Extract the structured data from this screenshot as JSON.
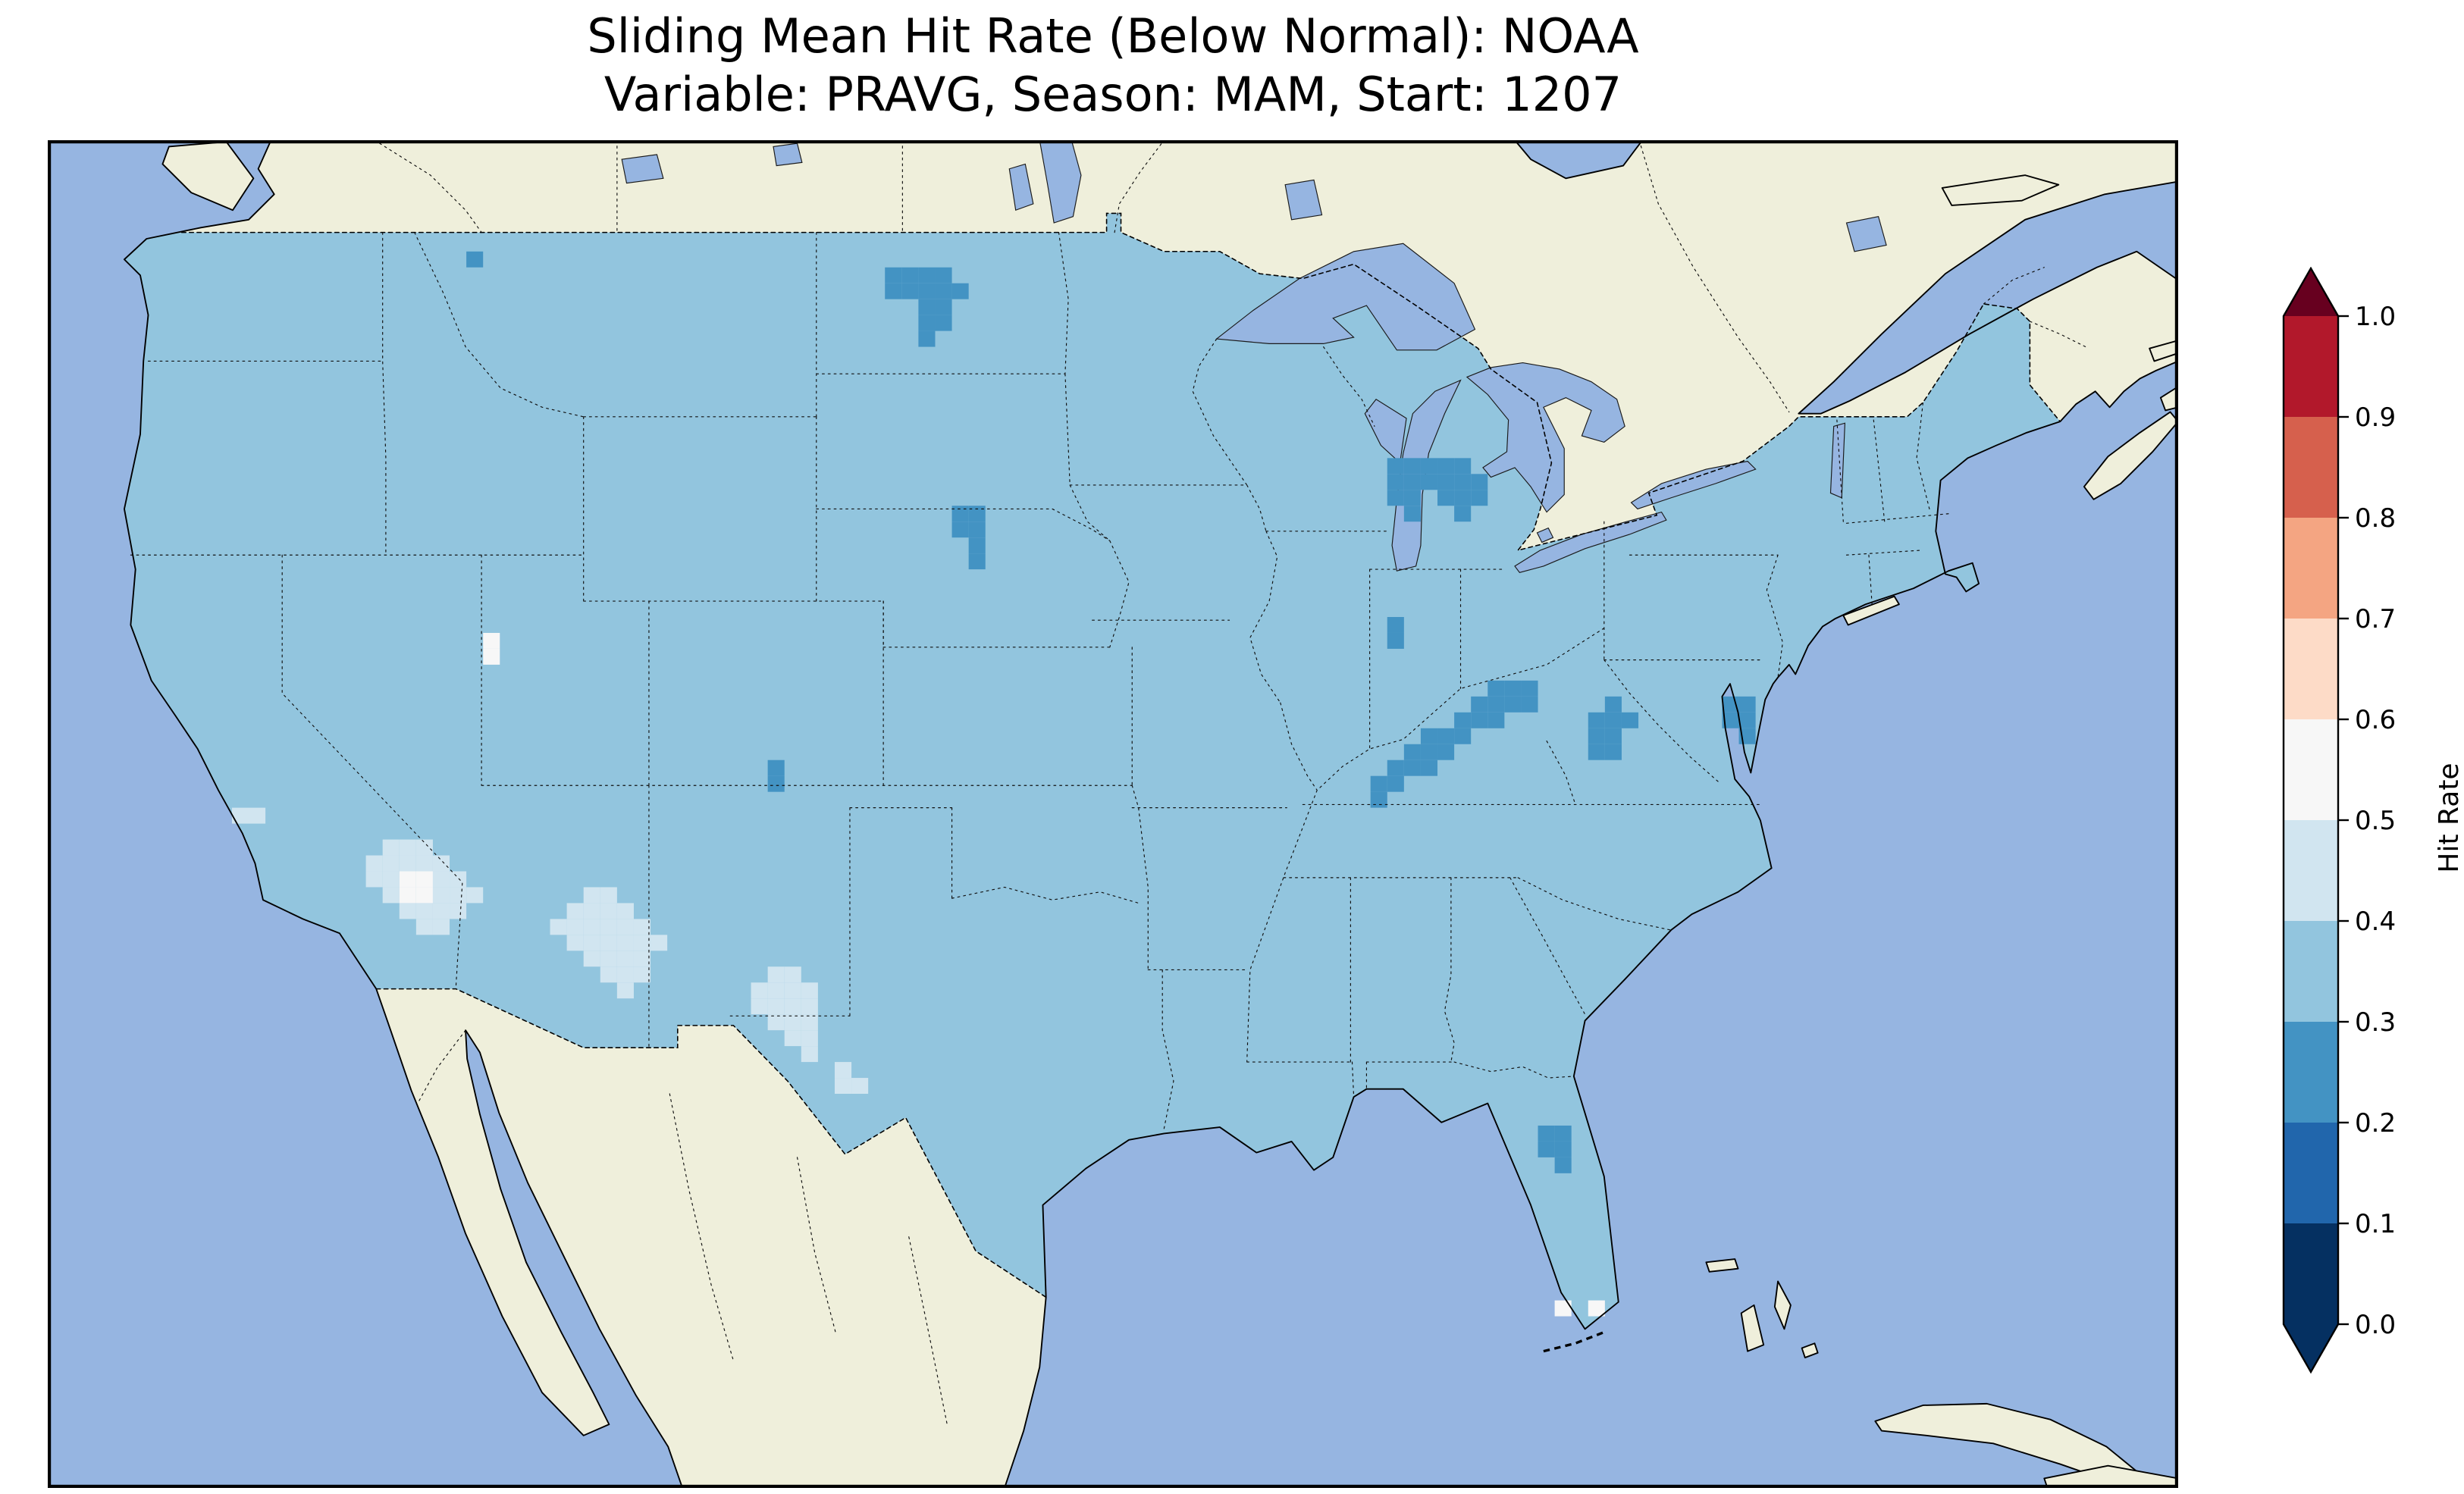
{
  "title": {
    "line1": "Sliding Mean Hit Rate (Below Normal): NOAA",
    "line2": "Variable: PRAVG, Season: MAM, Start: 1207"
  },
  "colorbar": {
    "label": "Hit Rate",
    "ticks": [
      "1.0",
      "0.9",
      "0.8",
      "0.7",
      "0.6",
      "0.5",
      "0.4",
      "0.3",
      "0.2",
      "0.1",
      "0.0"
    ],
    "segment_colors_top_to_bottom": [
      "#b2182b",
      "#d6604d",
      "#f4a582",
      "#fddbc7",
      "#f7f7f7",
      "#d1e5f0",
      "#92c5de",
      "#4393c3",
      "#2166ac",
      "#053061"
    ],
    "over_color": "#67001f",
    "under_color": "#053061",
    "range": [
      0.0,
      1.0
    ]
  },
  "map": {
    "ocean_color": "#96b5e1",
    "land_color": "#efefdb",
    "lake_color": "#96b5e1"
  },
  "chart_data": {
    "type": "heatmap",
    "title": "Sliding Mean Hit Rate (Below Normal): NOAA",
    "subtitle": "Variable: PRAVG, Season: MAM, Start: 1207",
    "colorbar_label": "Hit Rate",
    "colormap": "RdBu_r (blue = low, red = high)",
    "value_range": [
      0.0,
      1.0
    ],
    "bin_edges": [
      0.0,
      0.1,
      0.2,
      0.3,
      0.4,
      0.5,
      0.6,
      0.7,
      0.8,
      0.9,
      1.0
    ],
    "region_shown": "Contiguous United States",
    "base_value": 0.35,
    "regions": [
      {
        "name": "North Dakota (north-central)",
        "value": 0.25,
        "cells": [
          [
            50,
            8
          ],
          [
            51,
            8
          ],
          [
            52,
            8
          ],
          [
            53,
            8
          ],
          [
            50,
            9
          ],
          [
            51,
            9
          ],
          [
            52,
            9
          ],
          [
            53,
            9
          ],
          [
            54,
            9
          ],
          [
            52,
            10
          ],
          [
            53,
            10
          ],
          [
            52,
            11
          ],
          [
            53,
            11
          ],
          [
            52,
            12
          ]
        ]
      },
      {
        "name": "Montana north-border spot",
        "value": 0.25,
        "cells": [
          [
            25,
            7
          ]
        ]
      },
      {
        "name": "South Dakota / Nebraska border",
        "value": 0.25,
        "cells": [
          [
            54,
            23
          ],
          [
            55,
            23
          ],
          [
            54,
            24
          ],
          [
            55,
            24
          ],
          [
            55,
            25
          ],
          [
            55,
            26
          ]
        ]
      },
      {
        "name": "Lower Michigan (central)",
        "value": 0.25,
        "cells": [
          [
            80,
            20
          ],
          [
            81,
            20
          ],
          [
            82,
            20
          ],
          [
            83,
            20
          ],
          [
            84,
            20
          ],
          [
            80,
            21
          ],
          [
            81,
            21
          ],
          [
            82,
            21
          ],
          [
            83,
            21
          ],
          [
            84,
            21
          ],
          [
            85,
            21
          ],
          [
            80,
            22
          ],
          [
            81,
            22
          ],
          [
            83,
            22
          ],
          [
            84,
            22
          ],
          [
            85,
            22
          ],
          [
            81,
            23
          ],
          [
            84,
            23
          ]
        ]
      },
      {
        "name": "Central Indiana spot",
        "value": 0.25,
        "cells": [
          [
            80,
            30
          ],
          [
            80,
            31
          ]
        ]
      },
      {
        "name": "Ohio Valley / Kentucky-Indiana",
        "value": 0.25,
        "cells": [
          [
            86,
            34
          ],
          [
            87,
            34
          ],
          [
            88,
            34
          ],
          [
            85,
            35
          ],
          [
            86,
            35
          ],
          [
            87,
            35
          ],
          [
            88,
            35
          ],
          [
            84,
            36
          ],
          [
            85,
            36
          ],
          [
            86,
            36
          ],
          [
            82,
            37
          ],
          [
            83,
            37
          ],
          [
            84,
            37
          ],
          [
            81,
            38
          ],
          [
            82,
            38
          ],
          [
            83,
            38
          ],
          [
            80,
            39
          ],
          [
            81,
            39
          ],
          [
            82,
            39
          ],
          [
            79,
            40
          ],
          [
            80,
            40
          ],
          [
            79,
            41
          ]
        ]
      },
      {
        "name": "West Virginia",
        "value": 0.25,
        "cells": [
          [
            93,
            35
          ],
          [
            92,
            36
          ],
          [
            93,
            36
          ],
          [
            94,
            36
          ],
          [
            92,
            37
          ],
          [
            93,
            37
          ],
          [
            92,
            38
          ],
          [
            93,
            38
          ]
        ]
      },
      {
        "name": "Chesapeake Bay area",
        "value": 0.25,
        "cells": [
          [
            100,
            35
          ],
          [
            101,
            35
          ],
          [
            100,
            36
          ],
          [
            101,
            36
          ],
          [
            101,
            37
          ]
        ]
      },
      {
        "name": "Central Florida",
        "value": 0.25,
        "cells": [
          [
            89,
            62
          ],
          [
            90,
            62
          ],
          [
            89,
            63
          ],
          [
            90,
            63
          ],
          [
            90,
            64
          ]
        ]
      },
      {
        "name": "Southeast Colorado spot",
        "value": 0.25,
        "cells": [
          [
            43,
            39
          ],
          [
            43,
            40
          ]
        ]
      },
      {
        "name": "Arizona (pale region)",
        "value": 0.45,
        "cells": [
          [
            20,
            44
          ],
          [
            21,
            44
          ],
          [
            22,
            44
          ],
          [
            19,
            45
          ],
          [
            20,
            45
          ],
          [
            21,
            45
          ],
          [
            22,
            45
          ],
          [
            23,
            45
          ],
          [
            19,
            46
          ],
          [
            20,
            46
          ],
          [
            23,
            46
          ],
          [
            24,
            46
          ],
          [
            20,
            47
          ],
          [
            23,
            47
          ],
          [
            24,
            47
          ],
          [
            25,
            47
          ],
          [
            21,
            48
          ],
          [
            22,
            48
          ],
          [
            23,
            48
          ],
          [
            24,
            48
          ],
          [
            22,
            49
          ],
          [
            23,
            49
          ]
        ]
      },
      {
        "name": "Arizona core (near-white)",
        "value": 0.55,
        "cells": [
          [
            21,
            46
          ],
          [
            22,
            46
          ],
          [
            21,
            47
          ],
          [
            22,
            47
          ]
        ]
      },
      {
        "name": "Western New Mexico (pale region)",
        "value": 0.45,
        "cells": [
          [
            32,
            47
          ],
          [
            33,
            47
          ],
          [
            31,
            48
          ],
          [
            32,
            48
          ],
          [
            33,
            48
          ],
          [
            34,
            48
          ],
          [
            30,
            49
          ],
          [
            31,
            49
          ],
          [
            32,
            49
          ],
          [
            33,
            49
          ],
          [
            34,
            49
          ],
          [
            35,
            49
          ],
          [
            31,
            50
          ],
          [
            32,
            50
          ],
          [
            33,
            50
          ],
          [
            34,
            50
          ],
          [
            35,
            50
          ],
          [
            36,
            50
          ],
          [
            32,
            51
          ],
          [
            33,
            51
          ],
          [
            34,
            51
          ],
          [
            35,
            51
          ],
          [
            33,
            52
          ],
          [
            34,
            52
          ],
          [
            35,
            52
          ],
          [
            34,
            53
          ]
        ]
      },
      {
        "name": "West Texas (pale region)",
        "value": 0.45,
        "cells": [
          [
            43,
            52
          ],
          [
            44,
            52
          ],
          [
            42,
            53
          ],
          [
            43,
            53
          ],
          [
            44,
            53
          ],
          [
            45,
            53
          ],
          [
            42,
            54
          ],
          [
            43,
            54
          ],
          [
            44,
            54
          ],
          [
            45,
            54
          ],
          [
            43,
            55
          ],
          [
            44,
            55
          ],
          [
            45,
            55
          ],
          [
            44,
            56
          ],
          [
            45,
            56
          ],
          [
            45,
            57
          ],
          [
            47,
            58
          ],
          [
            47,
            59
          ],
          [
            48,
            59
          ]
        ]
      },
      {
        "name": "Southern Nevada spot",
        "value": 0.45,
        "cells": [
          [
            11,
            42
          ],
          [
            12,
            42
          ]
        ]
      },
      {
        "name": "Utah spot (near-white)",
        "value": 0.55,
        "cells": [
          [
            26,
            31
          ],
          [
            26,
            32
          ]
        ]
      },
      {
        "name": "South Florida dots (near-white)",
        "value": 0.55,
        "cells": [
          [
            90,
            73
          ],
          [
            92,
            73
          ]
        ]
      }
    ]
  }
}
